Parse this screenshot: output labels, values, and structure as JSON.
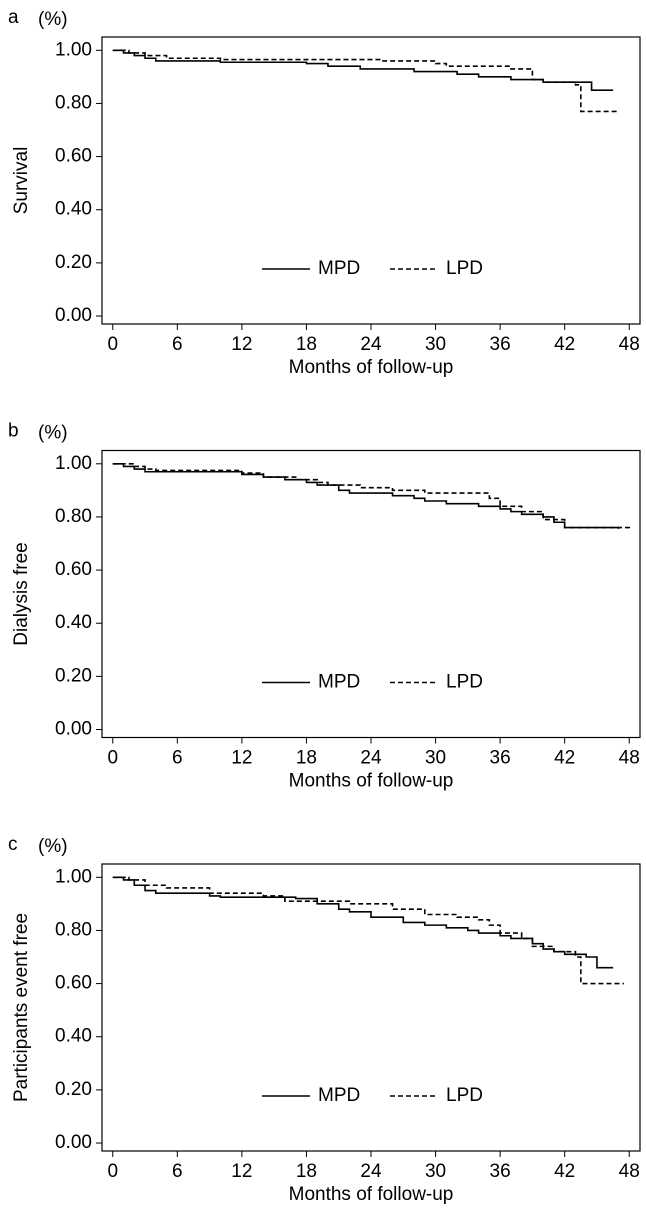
{
  "chart_data": [
    {
      "type": "line",
      "step": true,
      "panel_label": "a",
      "y_unit": "(%)",
      "ylabel": "Survival",
      "xlabel": "Months of follow-up",
      "xlim": [
        -1,
        49
      ],
      "ylim": [
        -0.03,
        1.05
      ],
      "xticks": [
        0,
        6,
        12,
        18,
        24,
        30,
        36,
        42,
        48
      ],
      "yticks": [
        {
          "value": 0,
          "label": "0.00"
        },
        {
          "value": 0.2,
          "label": "0.20"
        },
        {
          "value": 0.4,
          "label": "0.40"
        },
        {
          "value": 0.6,
          "label": "0.60"
        },
        {
          "value": 0.8,
          "label": "0.80"
        },
        {
          "value": 1,
          "label": "1.00"
        }
      ],
      "legend": "bottom",
      "series": [
        {
          "name": "MPD",
          "color": "#000000",
          "line_style": "solid",
          "x": [
            0,
            1,
            2,
            3,
            4,
            10,
            18,
            20,
            23,
            28,
            32,
            34,
            37,
            40,
            44.5,
            46.5
          ],
          "values": [
            1,
            0.99,
            0.98,
            0.97,
            0.96,
            0.955,
            0.95,
            0.94,
            0.93,
            0.92,
            0.91,
            0.9,
            0.89,
            0.88,
            0.85,
            0.85
          ]
        },
        {
          "name": "LPD",
          "color": "#000000",
          "line_style": "dashed",
          "x": [
            0,
            1.5,
            3,
            5,
            10,
            18,
            25,
            30,
            31,
            37,
            39,
            40,
            43,
            43.5,
            47
          ],
          "values": [
            1,
            0.99,
            0.98,
            0.97,
            0.965,
            0.965,
            0.96,
            0.95,
            0.94,
            0.93,
            0.89,
            0.88,
            0.87,
            0.77,
            0.77
          ]
        }
      ]
    },
    {
      "type": "line",
      "step": true,
      "panel_label": "b",
      "y_unit": "(%)",
      "ylabel": "Dialysis free",
      "xlabel": "Months of follow-up",
      "xlim": [
        -1,
        49
      ],
      "ylim": [
        -0.03,
        1.05
      ],
      "xticks": [
        0,
        6,
        12,
        18,
        24,
        30,
        36,
        42,
        48
      ],
      "yticks": [
        {
          "value": 0,
          "label": "0.00"
        },
        {
          "value": 0.2,
          "label": "0.20"
        },
        {
          "value": 0.4,
          "label": "0.40"
        },
        {
          "value": 0.6,
          "label": "0.60"
        },
        {
          "value": 0.8,
          "label": "0.80"
        },
        {
          "value": 1,
          "label": "1.00"
        }
      ],
      "legend": "bottom",
      "series": [
        {
          "name": "MPD",
          "color": "#000000",
          "line_style": "solid",
          "x": [
            0,
            1,
            2,
            3,
            12,
            14,
            16,
            18,
            19,
            21,
            22,
            26,
            28,
            29,
            31,
            34,
            36,
            37,
            38,
            40,
            41,
            42,
            46,
            47
          ],
          "values": [
            1,
            0.99,
            0.98,
            0.97,
            0.96,
            0.95,
            0.94,
            0.93,
            0.92,
            0.9,
            0.89,
            0.88,
            0.87,
            0.86,
            0.85,
            0.84,
            0.83,
            0.82,
            0.81,
            0.8,
            0.78,
            0.76,
            0.76,
            0.755
          ]
        },
        {
          "name": "LPD",
          "color": "#000000",
          "line_style": "dashed",
          "x": [
            0,
            2,
            3,
            4,
            12,
            14,
            17,
            19,
            20,
            23,
            26,
            29,
            35,
            36,
            38,
            40,
            42,
            48
          ],
          "values": [
            1,
            0.99,
            0.98,
            0.975,
            0.965,
            0.95,
            0.94,
            0.93,
            0.92,
            0.91,
            0.9,
            0.89,
            0.87,
            0.84,
            0.82,
            0.79,
            0.76,
            0.755
          ]
        }
      ]
    },
    {
      "type": "line",
      "step": true,
      "panel_label": "c",
      "y_unit": "(%)",
      "ylabel": "Participants event free",
      "xlabel": "Months of follow-up",
      "xlim": [
        -1,
        49
      ],
      "ylim": [
        -0.03,
        1.05
      ],
      "xticks": [
        0,
        6,
        12,
        18,
        24,
        30,
        36,
        42,
        48
      ],
      "yticks": [
        {
          "value": 0,
          "label": "0.00"
        },
        {
          "value": 0.2,
          "label": "0.20"
        },
        {
          "value": 0.4,
          "label": "0.40"
        },
        {
          "value": 0.6,
          "label": "0.60"
        },
        {
          "value": 0.8,
          "label": "0.80"
        },
        {
          "value": 1,
          "label": "1.00"
        }
      ],
      "legend": "bottom",
      "series": [
        {
          "name": "MPD",
          "color": "#000000",
          "line_style": "solid",
          "x": [
            0,
            1,
            2,
            3,
            4,
            9,
            10,
            17,
            19,
            21,
            22,
            24,
            27,
            29,
            31,
            33,
            34,
            36,
            37,
            39,
            40,
            41,
            42,
            44,
            45,
            46.5
          ],
          "values": [
            1,
            0.99,
            0.97,
            0.95,
            0.94,
            0.93,
            0.925,
            0.92,
            0.9,
            0.88,
            0.87,
            0.85,
            0.83,
            0.82,
            0.81,
            0.8,
            0.79,
            0.78,
            0.77,
            0.75,
            0.73,
            0.72,
            0.71,
            0.7,
            0.66,
            0.66
          ]
        },
        {
          "name": "LPD",
          "color": "#000000",
          "line_style": "dashed",
          "x": [
            0,
            1.5,
            3,
            5,
            9,
            14,
            16,
            20,
            22,
            26,
            29,
            32,
            34,
            35,
            36,
            38,
            39,
            41,
            43,
            43.5,
            47.5
          ],
          "values": [
            1,
            0.99,
            0.97,
            0.96,
            0.94,
            0.93,
            0.91,
            0.91,
            0.9,
            0.88,
            0.86,
            0.85,
            0.84,
            0.82,
            0.79,
            0.77,
            0.74,
            0.72,
            0.7,
            0.6,
            0.6
          ]
        }
      ]
    }
  ]
}
